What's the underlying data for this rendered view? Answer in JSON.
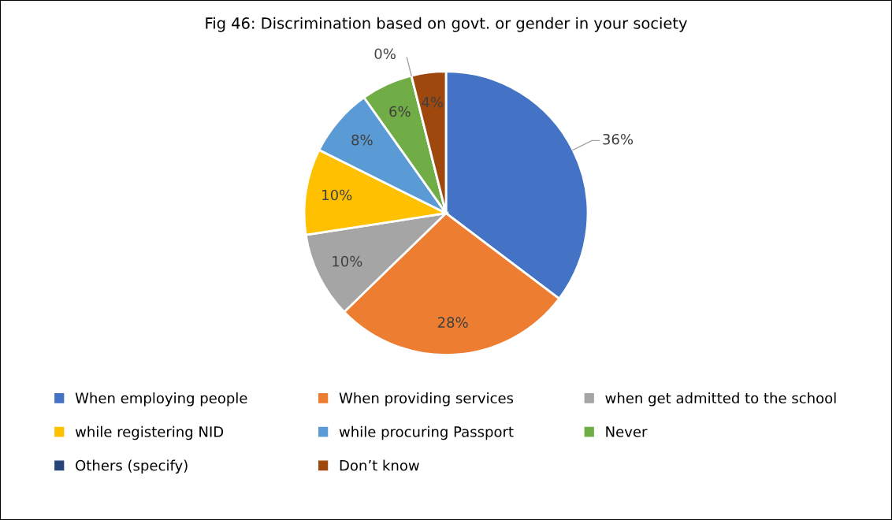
{
  "chart_data": {
    "type": "pie",
    "title": "Fig 46: Discrimination based on govt. or gender in your society",
    "categories": [
      "When employing people",
      "When providing services",
      "when get admitted to the school",
      "while registering NID",
      "while procuring Passport",
      "Never",
      "Others (specify)",
      "Don’t know"
    ],
    "values": [
      36,
      28,
      10,
      10,
      8,
      6,
      0,
      4
    ],
    "colors": [
      "#4472c4",
      "#ed7d31",
      "#a5a5a5",
      "#ffc000",
      "#5b9bd5",
      "#70ad47",
      "#264478",
      "#9e480e"
    ],
    "value_labels": [
      "36%",
      "28%",
      "10%",
      "10%",
      "8%",
      "6%",
      "0%",
      "4%"
    ],
    "legend": "bottom"
  }
}
